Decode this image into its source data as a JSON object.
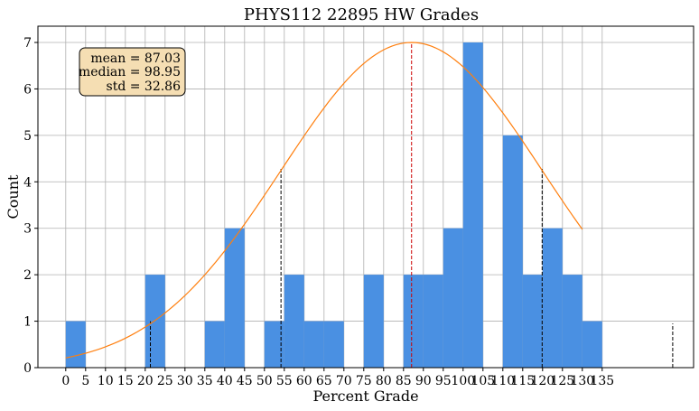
{
  "chart_data": {
    "type": "bar",
    "title": "PHYS112 22895 HW Grades",
    "xlabel": "Percent Grade",
    "ylabel": "Count",
    "xlim": [
      -7,
      158
    ],
    "ylim": [
      0,
      7.35
    ],
    "xticks": [
      0,
      5,
      10,
      15,
      20,
      25,
      30,
      35,
      40,
      45,
      50,
      55,
      60,
      65,
      70,
      75,
      80,
      85,
      90,
      95,
      100,
      105,
      110,
      115,
      120,
      125,
      130,
      135
    ],
    "yticks": [
      0,
      1,
      2,
      3,
      4,
      5,
      6,
      7
    ],
    "grid": true,
    "bin_width": 5,
    "bins": [
      {
        "x": 0,
        "count": 1
      },
      {
        "x": 20,
        "count": 2
      },
      {
        "x": 35,
        "count": 1
      },
      {
        "x": 40,
        "count": 3
      },
      {
        "x": 50,
        "count": 1
      },
      {
        "x": 55,
        "count": 2
      },
      {
        "x": 60,
        "count": 1
      },
      {
        "x": 65,
        "count": 1
      },
      {
        "x": 75,
        "count": 2
      },
      {
        "x": 85,
        "count": 2
      },
      {
        "x": 90,
        "count": 2
      },
      {
        "x": 95,
        "count": 3
      },
      {
        "x": 100,
        "count": 7
      },
      {
        "x": 110,
        "count": 5
      },
      {
        "x": 115,
        "count": 2
      },
      {
        "x": 120,
        "count": 3
      },
      {
        "x": 125,
        "count": 2
      },
      {
        "x": 130,
        "count": 1
      }
    ],
    "normal_curve": {
      "mean": 87.03,
      "std": 32.86,
      "peak": 7,
      "x_range": [
        0,
        130
      ],
      "color": "#ff7f0e"
    },
    "mean_line": {
      "x": 87.03,
      "height": 7,
      "color": "#cc0000"
    },
    "std_lines": [
      {
        "x": 21.3,
        "height": 1.0
      },
      {
        "x": 54.17,
        "height": 4.3
      },
      {
        "x": 119.89,
        "height": 4.3
      },
      {
        "x": 152.75,
        "height": 0.95
      }
    ],
    "bar_color": "#4a90e2",
    "box_color": "#f5deb3",
    "stats_box": {
      "position": "top-left",
      "lines": [
        "mean = 87.03",
        "median = 98.95",
        "std = 32.86"
      ]
    }
  }
}
